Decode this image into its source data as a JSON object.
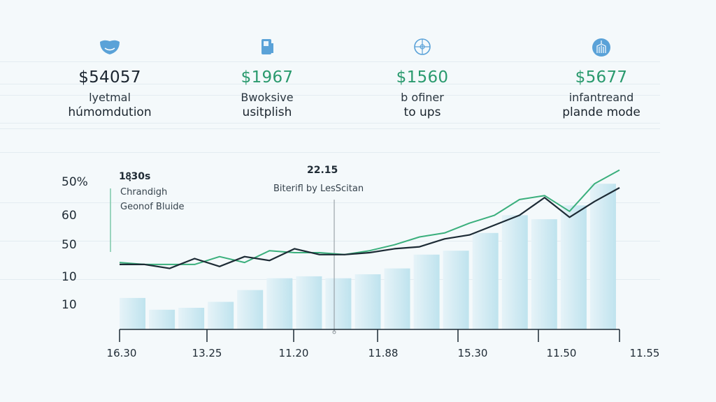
{
  "kpis": [
    {
      "icon": "face-icon",
      "value": "$54057",
      "value_color": "#1b2530",
      "label1": "lyetmal",
      "label2": "húmomdution"
    },
    {
      "icon": "book-icon",
      "value": "$1967",
      "value_color": "#2a9a6e",
      "label1": "Bwoksive",
      "label2": "usitplish"
    },
    {
      "icon": "globe-icon",
      "value": "$1560",
      "value_color": "#2a9a6e",
      "label1": "b ofiner",
      "label2": "to ups"
    },
    {
      "icon": "building-icon",
      "value": "$5677",
      "value_color": "#2a9a6e",
      "label1": "infantreand",
      "label2": "plande mode"
    }
  ],
  "annotations": [
    {
      "title": "18ฺ30s",
      "line1": "Chrandigh",
      "line2": "Geonof Bluide",
      "color": "#7cc7a9"
    },
    {
      "title": "22.15",
      "line1": "Biterifl by LesScitan",
      "color": "#8a9399"
    }
  ],
  "colors": {
    "bar": "#bfe3ee",
    "line_dark": "#1d2b35",
    "line_green": "#3aaf7c",
    "accent": "#2a9a6e",
    "icon": "#5aa2d8"
  },
  "chart_data": {
    "type": "bar",
    "y_tick_labels": [
      "50%",
      "60",
      "50",
      "10",
      "10"
    ],
    "x_tick_labels": [
      "16.30",
      "13.25",
      "11.20",
      "11.88",
      "15.30",
      "11.50",
      "11.55"
    ],
    "bars": [
      16,
      10,
      11,
      14,
      20,
      26,
      27,
      26,
      28,
      31,
      38,
      40,
      49,
      58,
      56,
      63,
      74
    ],
    "series": [
      {
        "name": "dark",
        "values": [
          33,
          33,
          31,
          36,
          32,
          37,
          35,
          41,
          38,
          38,
          39,
          41,
          42,
          46,
          48,
          53,
          58,
          67,
          57,
          65,
          72
        ]
      },
      {
        "name": "green",
        "values": [
          34,
          33,
          33,
          33,
          37,
          34,
          40,
          39,
          39,
          38,
          40,
          43,
          47,
          49,
          54,
          58,
          66,
          68,
          60,
          74,
          81
        ]
      }
    ],
    "ylim": [
      0,
      100
    ],
    "grid": false
  }
}
